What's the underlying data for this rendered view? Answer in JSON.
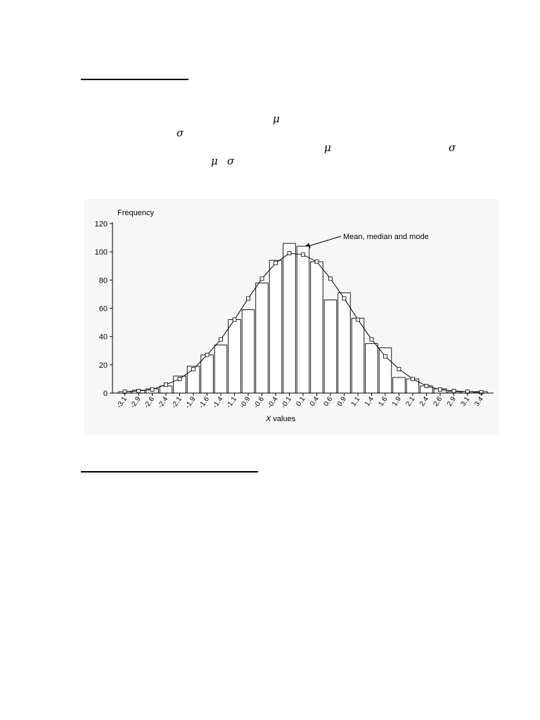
{
  "symbols": {
    "mu": "μ",
    "sigma": "σ"
  },
  "chart_data": {
    "type": "bar",
    "ylabel": "Frequency",
    "xlabel_italic": "X",
    "xlabel_rest": " values",
    "annotation": "Mean, median and mode",
    "ylim": [
      0,
      120
    ],
    "yticks": [
      0,
      20,
      40,
      60,
      80,
      100,
      120
    ],
    "grid": false,
    "categories": [
      "-3.1",
      "-2.9",
      "-2.6",
      "-2.4",
      "-2.1",
      "-1.9",
      "-1.6",
      "-1.4",
      "-1.1",
      "-0.9",
      "-0.6",
      "-0.4",
      "-0.1",
      "0.1",
      "0.4",
      "0.6",
      "0.9",
      "1.1",
      "1.4",
      "1.6",
      "1.9",
      "2.1",
      "2.4",
      "2.6",
      "2.9",
      "3.1",
      "3.4"
    ],
    "values": [
      1,
      2,
      3,
      5,
      12,
      19,
      27,
      34,
      52,
      59,
      78,
      94,
      106,
      104,
      93,
      66,
      71,
      53,
      35,
      32,
      11,
      10,
      5,
      3,
      1,
      1,
      1
    ],
    "curve": [
      1,
      1.5,
      2.5,
      6,
      10,
      17,
      27,
      38,
      52,
      67,
      81,
      92,
      99,
      98,
      93,
      81,
      67,
      52,
      38,
      26,
      17,
      10,
      5,
      2.5,
      1.5,
      1,
      0.5
    ]
  }
}
